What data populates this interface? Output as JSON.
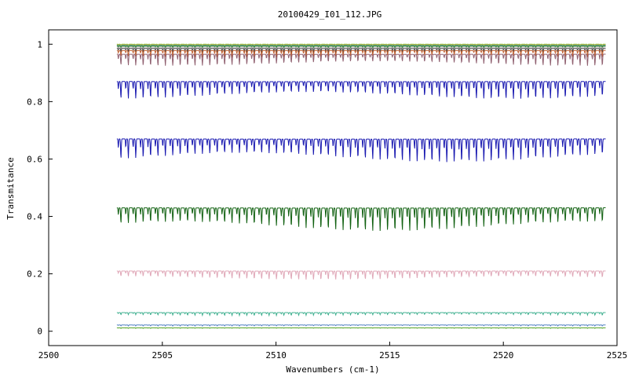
{
  "chart_data": {
    "type": "line",
    "title": "20100429_I01_112.JPG",
    "xlabel": "Wavenumbers (cm-1)",
    "ylabel": "Transmitance",
    "xlim": [
      2500,
      2525
    ],
    "ylim": [
      -0.05,
      1.05
    ],
    "x_ticks": [
      2500,
      2505,
      2510,
      2515,
      2520,
      2525
    ],
    "y_ticks": [
      0,
      0.2,
      0.4,
      0.6,
      0.8,
      1
    ],
    "y_tick_labels": [
      "0",
      "0.2",
      "0.4",
      "0.6",
      "0.8",
      "1"
    ],
    "grid": false,
    "legend": "none",
    "x_range_of_data": [
      2503.0,
      2524.5
    ],
    "line_count_at_period": 80,
    "series": [
      {
        "color": "#7cc84a",
        "baseline": 1.0,
        "depth": 0.004
      },
      {
        "color": "#d4a020",
        "baseline": 0.998,
        "depth": 0.005
      },
      {
        "color": "#4fa0c8",
        "baseline": 0.996,
        "depth": 0.006
      },
      {
        "color": "#2b8a2b",
        "baseline": 0.994,
        "depth": 0.008
      },
      {
        "color": "#a0a0a0",
        "baseline": 0.99,
        "depth": 0.012
      },
      {
        "color": "#444444",
        "baseline": 0.985,
        "depth": 0.018
      },
      {
        "color": "#c06030",
        "baseline": 0.978,
        "depth": 0.025
      },
      {
        "color": "#906070",
        "baseline": 0.965,
        "depth": 0.04
      },
      {
        "color": "#1818b0",
        "baseline": 0.87,
        "depth": 0.06
      },
      {
        "color": "#1818b0",
        "baseline": 0.67,
        "depth": 0.08
      },
      {
        "color": "#106010",
        "baseline": 0.43,
        "depth": 0.08
      },
      {
        "color": "#e0a8b8",
        "baseline": 0.21,
        "depth": 0.03
      },
      {
        "color": "#40b090",
        "baseline": 0.065,
        "depth": 0.01
      },
      {
        "color": "#5080c0",
        "baseline": 0.022,
        "depth": 0.004
      },
      {
        "color": "#50a020",
        "baseline": 0.012,
        "depth": 0.002
      }
    ]
  }
}
